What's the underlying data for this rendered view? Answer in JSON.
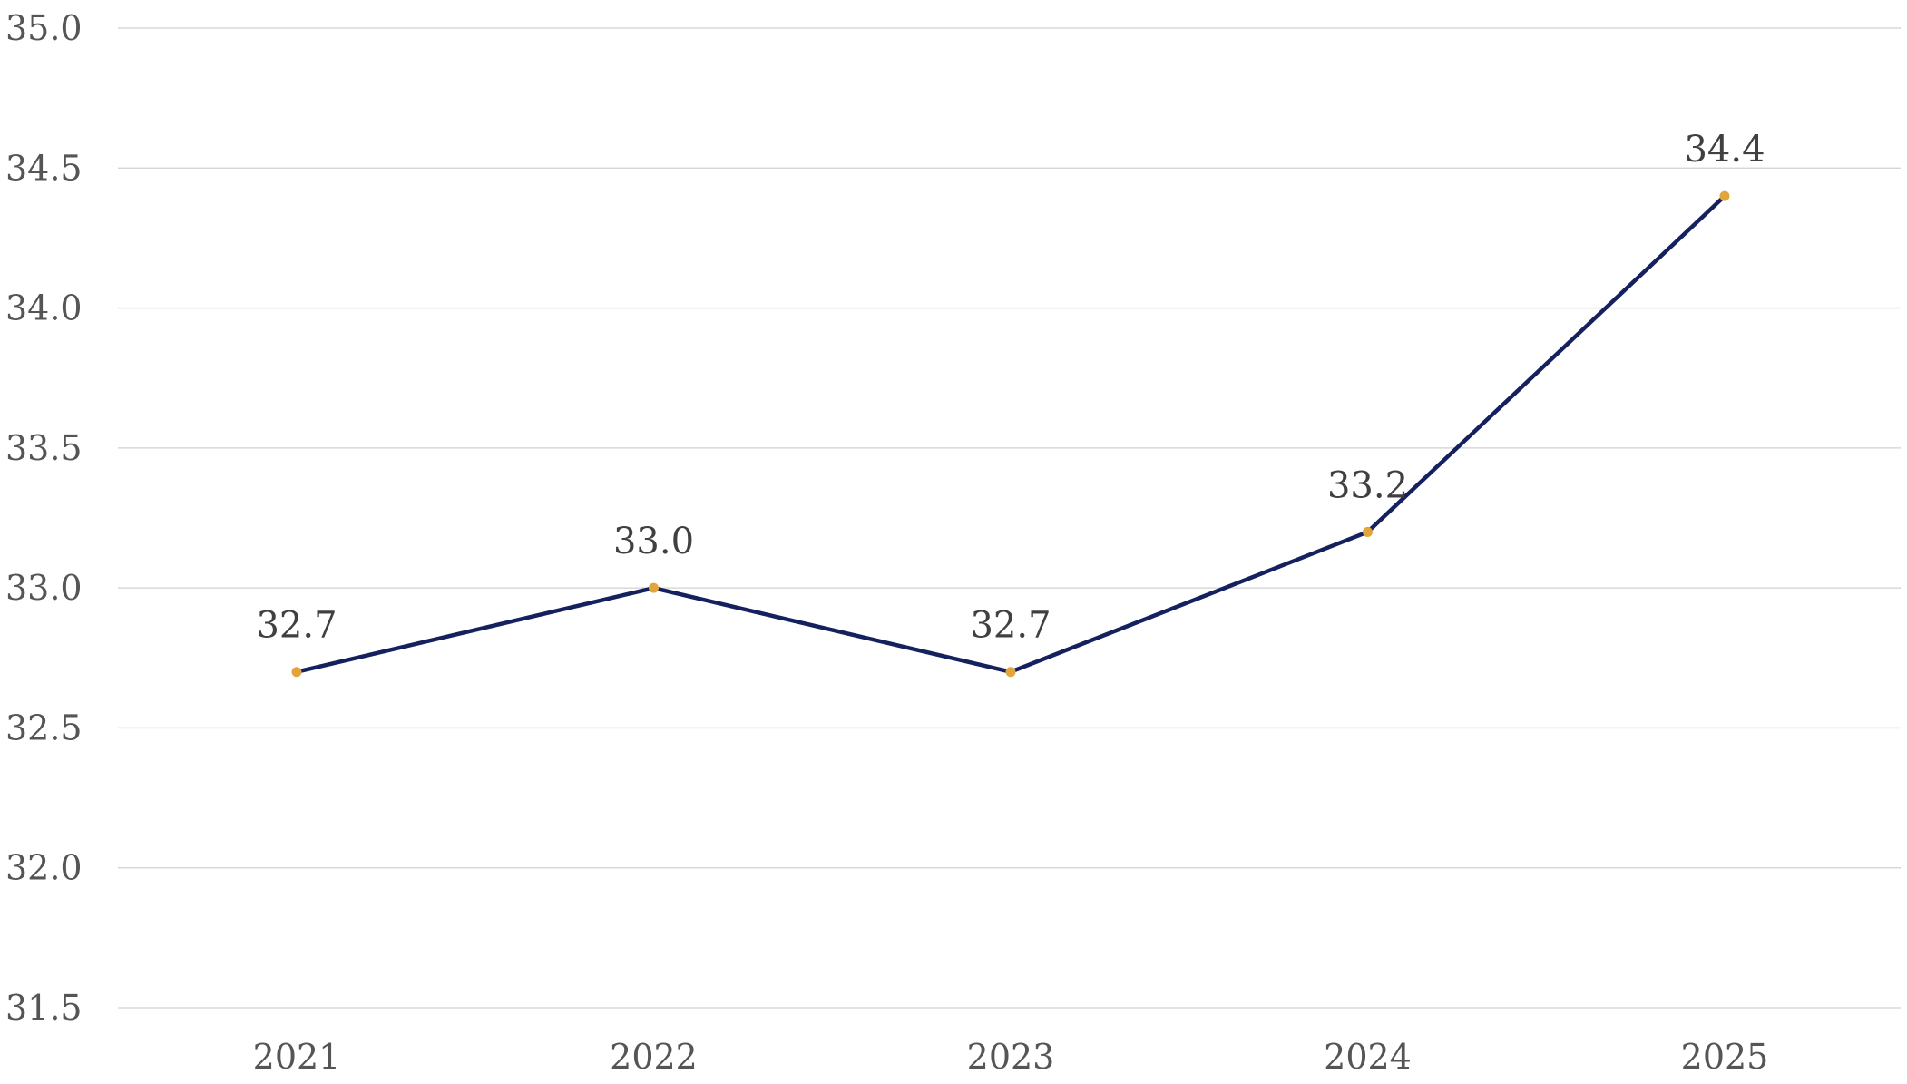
{
  "chart_data": {
    "type": "line",
    "title": "",
    "xlabel": "",
    "ylabel": "",
    "categories": [
      "2021",
      "2022",
      "2023",
      "2024",
      "2025"
    ],
    "series": [
      {
        "values": [
          32.7,
          33.0,
          32.7,
          33.2,
          34.4
        ],
        "data_labels": [
          "32.7",
          "33.0",
          "32.7",
          "33.2",
          "34.4"
        ]
      }
    ],
    "ylim": [
      31.5,
      35.0
    ],
    "y_ticks": [
      35.0,
      34.5,
      34.0,
      33.5,
      33.0,
      32.5,
      32.0,
      31.5
    ],
    "y_tick_labels": [
      "35.0",
      "34.5",
      "34.0",
      "33.5",
      "33.0",
      "32.5",
      "32.0",
      "31.5"
    ],
    "grid": true,
    "legend": "none",
    "colors": {
      "line": "#14215e",
      "marker": "#e3a53b",
      "grid": "#d0d0d0"
    }
  }
}
